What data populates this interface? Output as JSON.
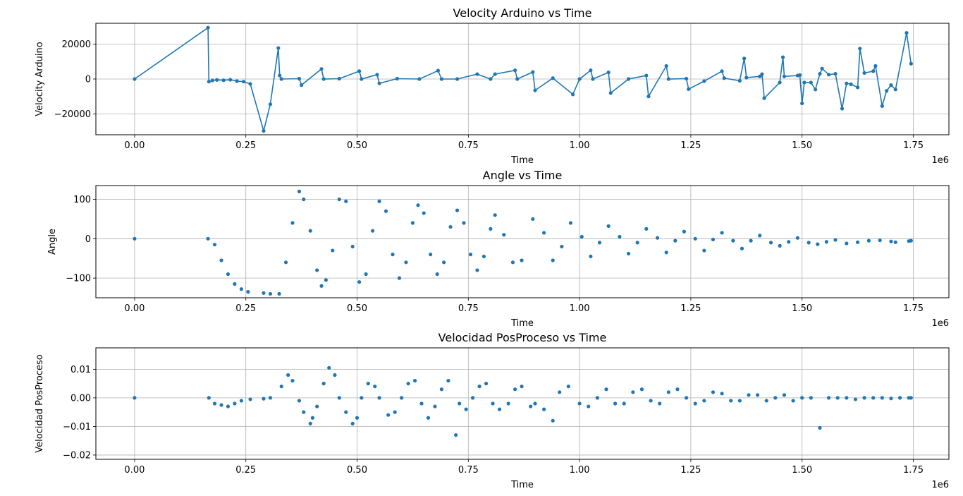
{
  "colors": {
    "series": "#1f77b4",
    "grid": "#b0b0b0"
  },
  "chart_data": [
    {
      "type": "line",
      "title": "Velocity Arduino vs Time",
      "xlabel": "Time",
      "ylabel": "Velocity Arduino",
      "x_offset_label": "1e6",
      "xlim": [
        -0.087,
        1.83
      ],
      "ylim": [
        -32000,
        32000
      ],
      "xticks": [
        0.0,
        0.25,
        0.5,
        0.75,
        1.0,
        1.25,
        1.5,
        1.75
      ],
      "xtick_labels": [
        "0.00",
        "0.25",
        "0.50",
        "0.75",
        "1.00",
        "1.25",
        "1.50",
        "1.75"
      ],
      "yticks": [
        -20000,
        0,
        20000
      ],
      "ytick_labels": [
        "−20000",
        "0",
        "20000"
      ],
      "grid": true,
      "markers": true,
      "x": [
        0.0,
        0.165,
        0.167,
        0.175,
        0.185,
        0.2,
        0.215,
        0.23,
        0.245,
        0.26,
        0.29,
        0.305,
        0.323,
        0.326,
        0.33,
        0.37,
        0.375,
        0.42,
        0.425,
        0.46,
        0.505,
        0.51,
        0.545,
        0.55,
        0.59,
        0.64,
        0.682,
        0.69,
        0.725,
        0.77,
        0.8,
        0.81,
        0.855,
        0.86,
        0.895,
        0.9,
        0.94,
        0.985,
        1.0,
        1.025,
        1.03,
        1.065,
        1.07,
        1.11,
        1.15,
        1.155,
        1.195,
        1.2,
        1.24,
        1.245,
        1.28,
        1.32,
        1.325,
        1.36,
        1.37,
        1.375,
        1.405,
        1.41,
        1.415,
        1.45,
        1.457,
        1.46,
        1.49,
        1.495,
        1.5,
        1.505,
        1.52,
        1.53,
        1.54,
        1.545,
        1.56,
        1.575,
        1.59,
        1.6,
        1.61,
        1.625,
        1.63,
        1.64,
        1.66,
        1.665,
        1.68,
        1.69,
        1.7,
        1.71,
        1.735,
        1.745
      ],
      "y": [
        0,
        29500,
        -1500,
        -800,
        -500,
        -700,
        -400,
        -1200,
        -1500,
        -2800,
        -29800,
        -14500,
        17800,
        2000,
        0,
        200,
        -3500,
        5800,
        0,
        200,
        4500,
        0,
        2500,
        -2500,
        200,
        0,
        4800,
        0,
        0,
        2800,
        0,
        2800,
        5000,
        0,
        4000,
        -6500,
        500,
        -8800,
        0,
        5000,
        0,
        3800,
        -8000,
        0,
        2000,
        -10000,
        7500,
        0,
        200,
        -5800,
        -1200,
        4500,
        500,
        -1000,
        11800,
        800,
        1500,
        2800,
        -11000,
        -2000,
        12500,
        1500,
        2000,
        2300,
        -14000,
        -2000,
        -2000,
        -6000,
        3000,
        6000,
        2500,
        3000,
        -17000,
        -2500,
        -3000,
        -4800,
        17500,
        3500,
        4500,
        7500,
        -15500,
        -6800,
        -3500,
        -6000,
        26500,
        8800
      ]
    },
    {
      "type": "scatter",
      "title": "Angle vs Time",
      "xlabel": "Time",
      "ylabel": "Angle",
      "x_offset_label": "1e6",
      "xlim": [
        -0.087,
        1.83
      ],
      "ylim": [
        -150,
        135
      ],
      "xticks": [
        0.0,
        0.25,
        0.5,
        0.75,
        1.0,
        1.25,
        1.5,
        1.75
      ],
      "xtick_labels": [
        "0.00",
        "0.25",
        "0.50",
        "0.75",
        "1.00",
        "1.25",
        "1.50",
        "1.75"
      ],
      "yticks": [
        -100,
        0,
        100
      ],
      "ytick_labels": [
        "−100",
        "0",
        "100"
      ],
      "grid": true,
      "x": [
        0.0,
        0.165,
        0.18,
        0.195,
        0.21,
        0.225,
        0.24,
        0.255,
        0.29,
        0.305,
        0.325,
        0.34,
        0.355,
        0.37,
        0.38,
        0.395,
        0.41,
        0.42,
        0.43,
        0.445,
        0.46,
        0.475,
        0.49,
        0.505,
        0.52,
        0.535,
        0.55,
        0.565,
        0.58,
        0.595,
        0.61,
        0.625,
        0.637,
        0.65,
        0.665,
        0.68,
        0.695,
        0.71,
        0.725,
        0.74,
        0.755,
        0.77,
        0.785,
        0.8,
        0.81,
        0.83,
        0.85,
        0.87,
        0.895,
        0.92,
        0.94,
        0.96,
        0.98,
        1.005,
        1.025,
        1.045,
        1.065,
        1.09,
        1.11,
        1.13,
        1.15,
        1.175,
        1.195,
        1.215,
        1.235,
        1.26,
        1.28,
        1.3,
        1.32,
        1.345,
        1.365,
        1.385,
        1.405,
        1.43,
        1.45,
        1.47,
        1.49,
        1.515,
        1.535,
        1.555,
        1.575,
        1.6,
        1.625,
        1.65,
        1.675,
        1.7,
        1.71,
        1.74,
        1.745
      ],
      "y": [
        0,
        0,
        -15,
        -55,
        -90,
        -115,
        -128,
        -135,
        -138,
        -140,
        -140,
        -60,
        40,
        120,
        100,
        20,
        -80,
        -120,
        -105,
        -30,
        100,
        95,
        -20,
        -110,
        -90,
        20,
        95,
        70,
        -40,
        -100,
        -60,
        40,
        85,
        65,
        -40,
        -90,
        -60,
        30,
        72,
        40,
        -40,
        -80,
        -45,
        25,
        60,
        10,
        -60,
        -55,
        50,
        15,
        -55,
        -20,
        40,
        5,
        -45,
        -10,
        32,
        5,
        -38,
        -10,
        25,
        2,
        -35,
        -5,
        18,
        0,
        -30,
        -2,
        15,
        -5,
        -25,
        -5,
        8,
        -10,
        -18,
        -8,
        2,
        -10,
        -14,
        -8,
        -3,
        -12,
        -9,
        -5,
        -4,
        -7,
        -9,
        -6,
        -5
      ]
    },
    {
      "type": "scatter",
      "title": "Velocidad PosProceso vs Time",
      "xlabel": "Time",
      "ylabel": "Velocidad PosProceso",
      "x_offset_label": "1e6",
      "xlim": [
        -0.087,
        1.83
      ],
      "ylim": [
        -0.0215,
        0.0175
      ],
      "xticks": [
        0.0,
        0.25,
        0.5,
        0.75,
        1.0,
        1.25,
        1.5,
        1.75
      ],
      "xtick_labels": [
        "0.00",
        "0.25",
        "0.50",
        "0.75",
        "1.00",
        "1.25",
        "1.50",
        "1.75"
      ],
      "yticks": [
        -0.02,
        -0.01,
        0.0,
        0.01
      ],
      "ytick_labels": [
        "−0.02",
        "−0.01",
        "0.00",
        "0.01"
      ],
      "grid": true,
      "x": [
        0.0,
        0.167,
        0.18,
        0.195,
        0.21,
        0.225,
        0.24,
        0.26,
        0.29,
        0.305,
        0.33,
        0.345,
        0.355,
        0.37,
        0.38,
        0.395,
        0.4,
        0.41,
        0.425,
        0.437,
        0.45,
        0.46,
        0.475,
        0.49,
        0.5,
        0.51,
        0.525,
        0.54,
        0.55,
        0.57,
        0.585,
        0.6,
        0.615,
        0.63,
        0.645,
        0.66,
        0.675,
        0.69,
        0.705,
        0.722,
        0.73,
        0.745,
        0.76,
        0.775,
        0.79,
        0.805,
        0.82,
        0.84,
        0.855,
        0.87,
        0.89,
        0.9,
        0.92,
        0.94,
        0.955,
        0.975,
        1.0,
        1.02,
        1.04,
        1.06,
        1.08,
        1.1,
        1.12,
        1.14,
        1.16,
        1.18,
        1.2,
        1.22,
        1.24,
        1.26,
        1.28,
        1.3,
        1.32,
        1.34,
        1.36,
        1.38,
        1.4,
        1.42,
        1.44,
        1.46,
        1.48,
        1.5,
        1.52,
        1.54,
        1.56,
        1.58,
        1.6,
        1.62,
        1.64,
        1.66,
        1.68,
        1.7,
        1.72,
        1.74,
        1.745
      ],
      "y": [
        0.0,
        0.0,
        -0.002,
        -0.0025,
        -0.003,
        -0.002,
        -0.001,
        -0.0005,
        -0.0003,
        0.0,
        0.004,
        0.008,
        0.006,
        -0.001,
        -0.005,
        -0.009,
        -0.007,
        -0.003,
        0.005,
        0.0105,
        0.008,
        0.0,
        -0.005,
        -0.009,
        -0.007,
        0.0,
        0.005,
        0.004,
        0.0,
        -0.006,
        -0.005,
        0.0,
        0.005,
        0.006,
        -0.002,
        -0.007,
        -0.003,
        0.003,
        0.006,
        -0.013,
        -0.002,
        -0.004,
        0.0,
        0.004,
        0.005,
        -0.002,
        -0.004,
        -0.002,
        0.003,
        0.004,
        -0.003,
        -0.002,
        -0.004,
        -0.008,
        0.002,
        0.004,
        -0.002,
        -0.003,
        0.0,
        0.003,
        -0.002,
        -0.002,
        0.002,
        0.003,
        -0.001,
        -0.002,
        0.002,
        0.003,
        0.0,
        -0.002,
        -0.001,
        0.002,
        0.0015,
        -0.001,
        -0.001,
        0.001,
        0.001,
        -0.001,
        0.0,
        0.001,
        -0.001,
        0.0,
        0.0,
        -0.0105,
        0.0,
        0.0,
        0.0,
        -0.0005,
        0.0,
        0.0,
        0.0,
        -0.0002,
        0.0,
        0.0,
        0.0
      ]
    }
  ]
}
